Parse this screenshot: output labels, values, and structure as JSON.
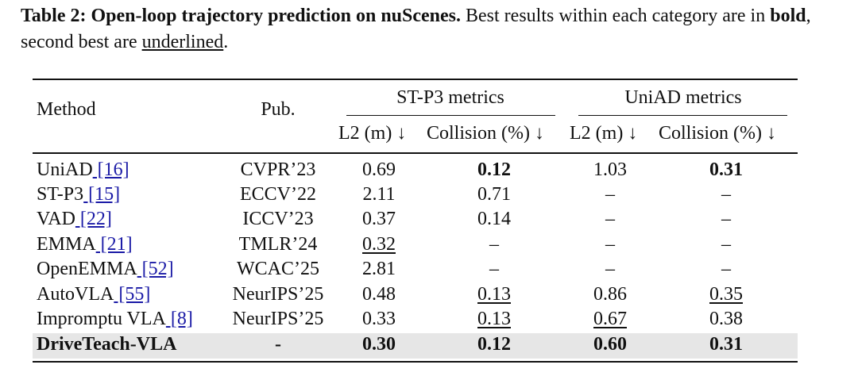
{
  "caption": {
    "label": "Table 2: Open-loop trajectory prediction on nuScenes.",
    "text_1": " Best results within each category are in ",
    "bold_word": "bold",
    "text_2": ", second best are ",
    "underlined_word": "underlined",
    "text_3": "."
  },
  "headers": {
    "method": "Method",
    "pub": "Pub.",
    "group_stp3": "ST-P3 metrics",
    "group_uniad": "UniAD metrics",
    "l2": "L2 (m) ↓",
    "collision": "Collision (%) ↓"
  },
  "rows": [
    {
      "name": "UniAD",
      "ref": "[16]",
      "pub": "CVPR’23",
      "stp3_l2": "0.69",
      "stp3_col": "0.12",
      "uniad_l2": "1.03",
      "uniad_col": "0.31"
    },
    {
      "name": "ST-P3",
      "ref": "[15]",
      "pub": "ECCV’22",
      "stp3_l2": "2.11",
      "stp3_col": "0.71",
      "uniad_l2": "–",
      "uniad_col": "–"
    },
    {
      "name": "VAD",
      "ref": "[22]",
      "pub": "ICCV’23",
      "stp3_l2": "0.37",
      "stp3_col": "0.14",
      "uniad_l2": "–",
      "uniad_col": "–"
    },
    {
      "name": "EMMA",
      "ref": "[21]",
      "pub": "TMLR’24",
      "stp3_l2": "0.32",
      "stp3_col": "–",
      "uniad_l2": "–",
      "uniad_col": "–"
    },
    {
      "name": "OpenEMMA",
      "ref": "[52]",
      "pub": "WCAC’25",
      "stp3_l2": "2.81",
      "stp3_col": "–",
      "uniad_l2": "–",
      "uniad_col": "–"
    },
    {
      "name": "AutoVLA",
      "ref": "[55]",
      "pub": "NeurIPS’25",
      "stp3_l2": "0.48",
      "stp3_col": "0.13",
      "uniad_l2": "0.86",
      "uniad_col": "0.35"
    },
    {
      "name": "Impromptu VLA",
      "ref": "[8]",
      "pub": "NeurIPS’25",
      "stp3_l2": "0.33",
      "stp3_col": "0.13",
      "uniad_l2": "0.67",
      "uniad_col": "0.38"
    },
    {
      "name": "DriveTeach-VLA",
      "ref": "",
      "pub": "-",
      "stp3_l2": "0.30",
      "stp3_col": "0.12",
      "uniad_l2": "0.60",
      "uniad_col": "0.31"
    }
  ]
}
